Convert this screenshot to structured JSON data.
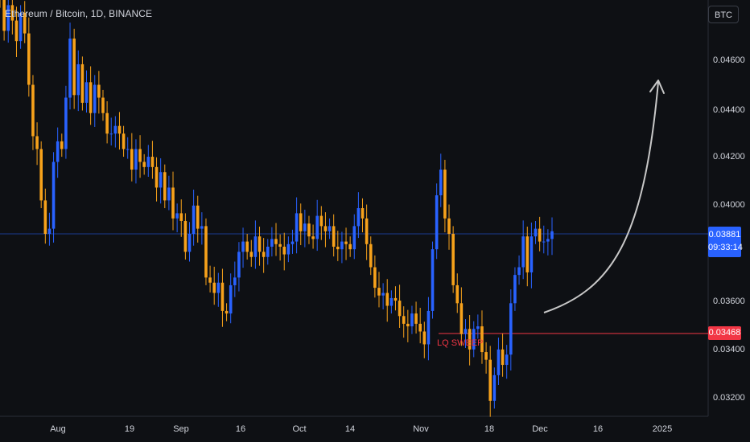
{
  "header": {
    "symbol_title": "Ethereum / Bitcoin, 1D, BINANCE",
    "currency_button": "BTC"
  },
  "colors": {
    "background": "#0e1014",
    "up_candle": "#2962ff",
    "down_candle": "#f7a21b",
    "sweep_line": "#f23645",
    "price_line": "#2962ff",
    "arrow": "#c8c8c8"
  },
  "price_badge": {
    "price": "0.03881",
    "countdown": "09:33:14"
  },
  "sweep_badge": {
    "price": "0.03468"
  },
  "annotation": {
    "lq_sweep": "LQ SWEEP"
  },
  "chart_data": {
    "type": "candlestick",
    "title": "Ethereum / Bitcoin, 1D, BINANCE",
    "y_ticks": [
      "0.04600",
      "0.04400",
      "0.04200",
      "0.04000",
      "0.03600",
      "0.03400",
      "0.03200"
    ],
    "x_ticks": [
      "Aug",
      "19",
      "Sep",
      "16",
      "Oct",
      "14",
      "Nov",
      "18",
      "Dec",
      "16",
      "2025"
    ],
    "ylim": [
      0.0316,
      0.0478
    ],
    "last_price": 0.03881,
    "sweep_level": 0.03468,
    "close_series": [
      0.0478,
      0.0466,
      0.0476,
      0.047,
      0.0462,
      0.0473,
      0.0465,
      0.0445,
      0.0425,
      0.042,
      0.04,
      0.0387,
      0.0389,
      0.0415,
      0.0423,
      0.042,
      0.044,
      0.0463,
      0.0441,
      0.0453,
      0.0438,
      0.0446,
      0.0434,
      0.0445,
      0.044,
      0.0434,
      0.0426,
      0.0426,
      0.0429,
      0.0426,
      0.042,
      0.042,
      0.0412,
      0.042,
      0.0415,
      0.0413,
      0.0417,
      0.0413,
      0.0405,
      0.0411,
      0.04,
      0.0405,
      0.0393,
      0.0395,
      0.0392,
      0.038,
      0.0387,
      0.0398,
      0.0389,
      0.039,
      0.037,
      0.0368,
      0.0364,
      0.0368,
      0.0357,
      0.0356,
      0.0367,
      0.037,
      0.038,
      0.0384,
      0.038,
      0.0378,
      0.0386,
      0.038,
      0.0378,
      0.0382,
      0.0385,
      0.0383,
      0.0382,
      0.0379,
      0.0383,
      0.0384,
      0.0395,
      0.0388,
      0.0391,
      0.0386,
      0.0385,
      0.0394,
      0.039,
      0.0388,
      0.039,
      0.0382,
      0.0381,
      0.0384,
      0.0383,
      0.0381,
      0.039,
      0.0397,
      0.0393,
      0.0383,
      0.0374,
      0.0366,
      0.0363,
      0.0364,
      0.0359,
      0.0362,
      0.0361,
      0.0355,
      0.0352,
      0.0351,
      0.0356,
      0.0352,
      0.0349,
      0.0344,
      0.0357,
      0.0381,
      0.0402,
      0.0412,
      0.0393,
      0.0387,
      0.0367,
      0.036,
      0.0348,
      0.035,
      0.0342,
      0.035,
      0.0351,
      0.0341,
      0.0338,
      0.0322,
      0.0332,
      0.0342,
      0.0336,
      0.034,
      0.036,
      0.0371,
      0.0374,
      0.0386,
      0.0372,
      0.0386,
      0.0389,
      0.0384,
      0.0384,
      0.0385,
      0.0388
    ]
  }
}
